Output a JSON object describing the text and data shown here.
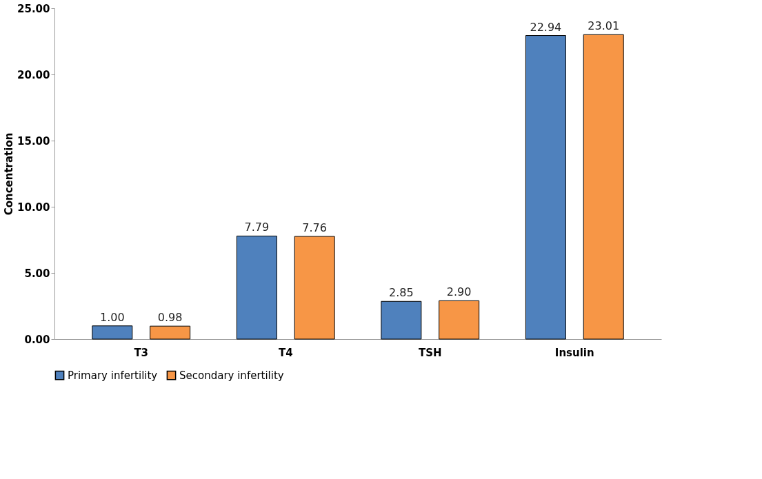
{
  "chart_data": {
    "type": "bar",
    "ylabel": "Concentration",
    "categories": [
      "T3",
      "T4",
      "TSH",
      "Insulin"
    ],
    "series": [
      {
        "name": "Primary infertility",
        "color": "#4f81bd",
        "values": [
          1.0,
          7.79,
          2.85,
          22.94
        ],
        "value_labels": [
          "1.00",
          "7.79",
          "2.85",
          "22.94"
        ]
      },
      {
        "name": "Secondary infertility",
        "color": "#f79646",
        "values": [
          0.98,
          7.76,
          2.9,
          23.01
        ],
        "value_labels": [
          "0.98",
          "7.76",
          "2.90",
          "23.01"
        ]
      }
    ],
    "ylim": [
      0,
      25
    ],
    "yticks": [
      {
        "value": 0,
        "label": "0.00"
      },
      {
        "value": 5,
        "label": "5.00"
      },
      {
        "value": 10,
        "label": "10.00"
      },
      {
        "value": 15,
        "label": "15.00"
      },
      {
        "value": 20,
        "label": "20.00"
      },
      {
        "value": 25,
        "label": "25.00"
      }
    ],
    "grid": false,
    "legend": "bottom"
  }
}
